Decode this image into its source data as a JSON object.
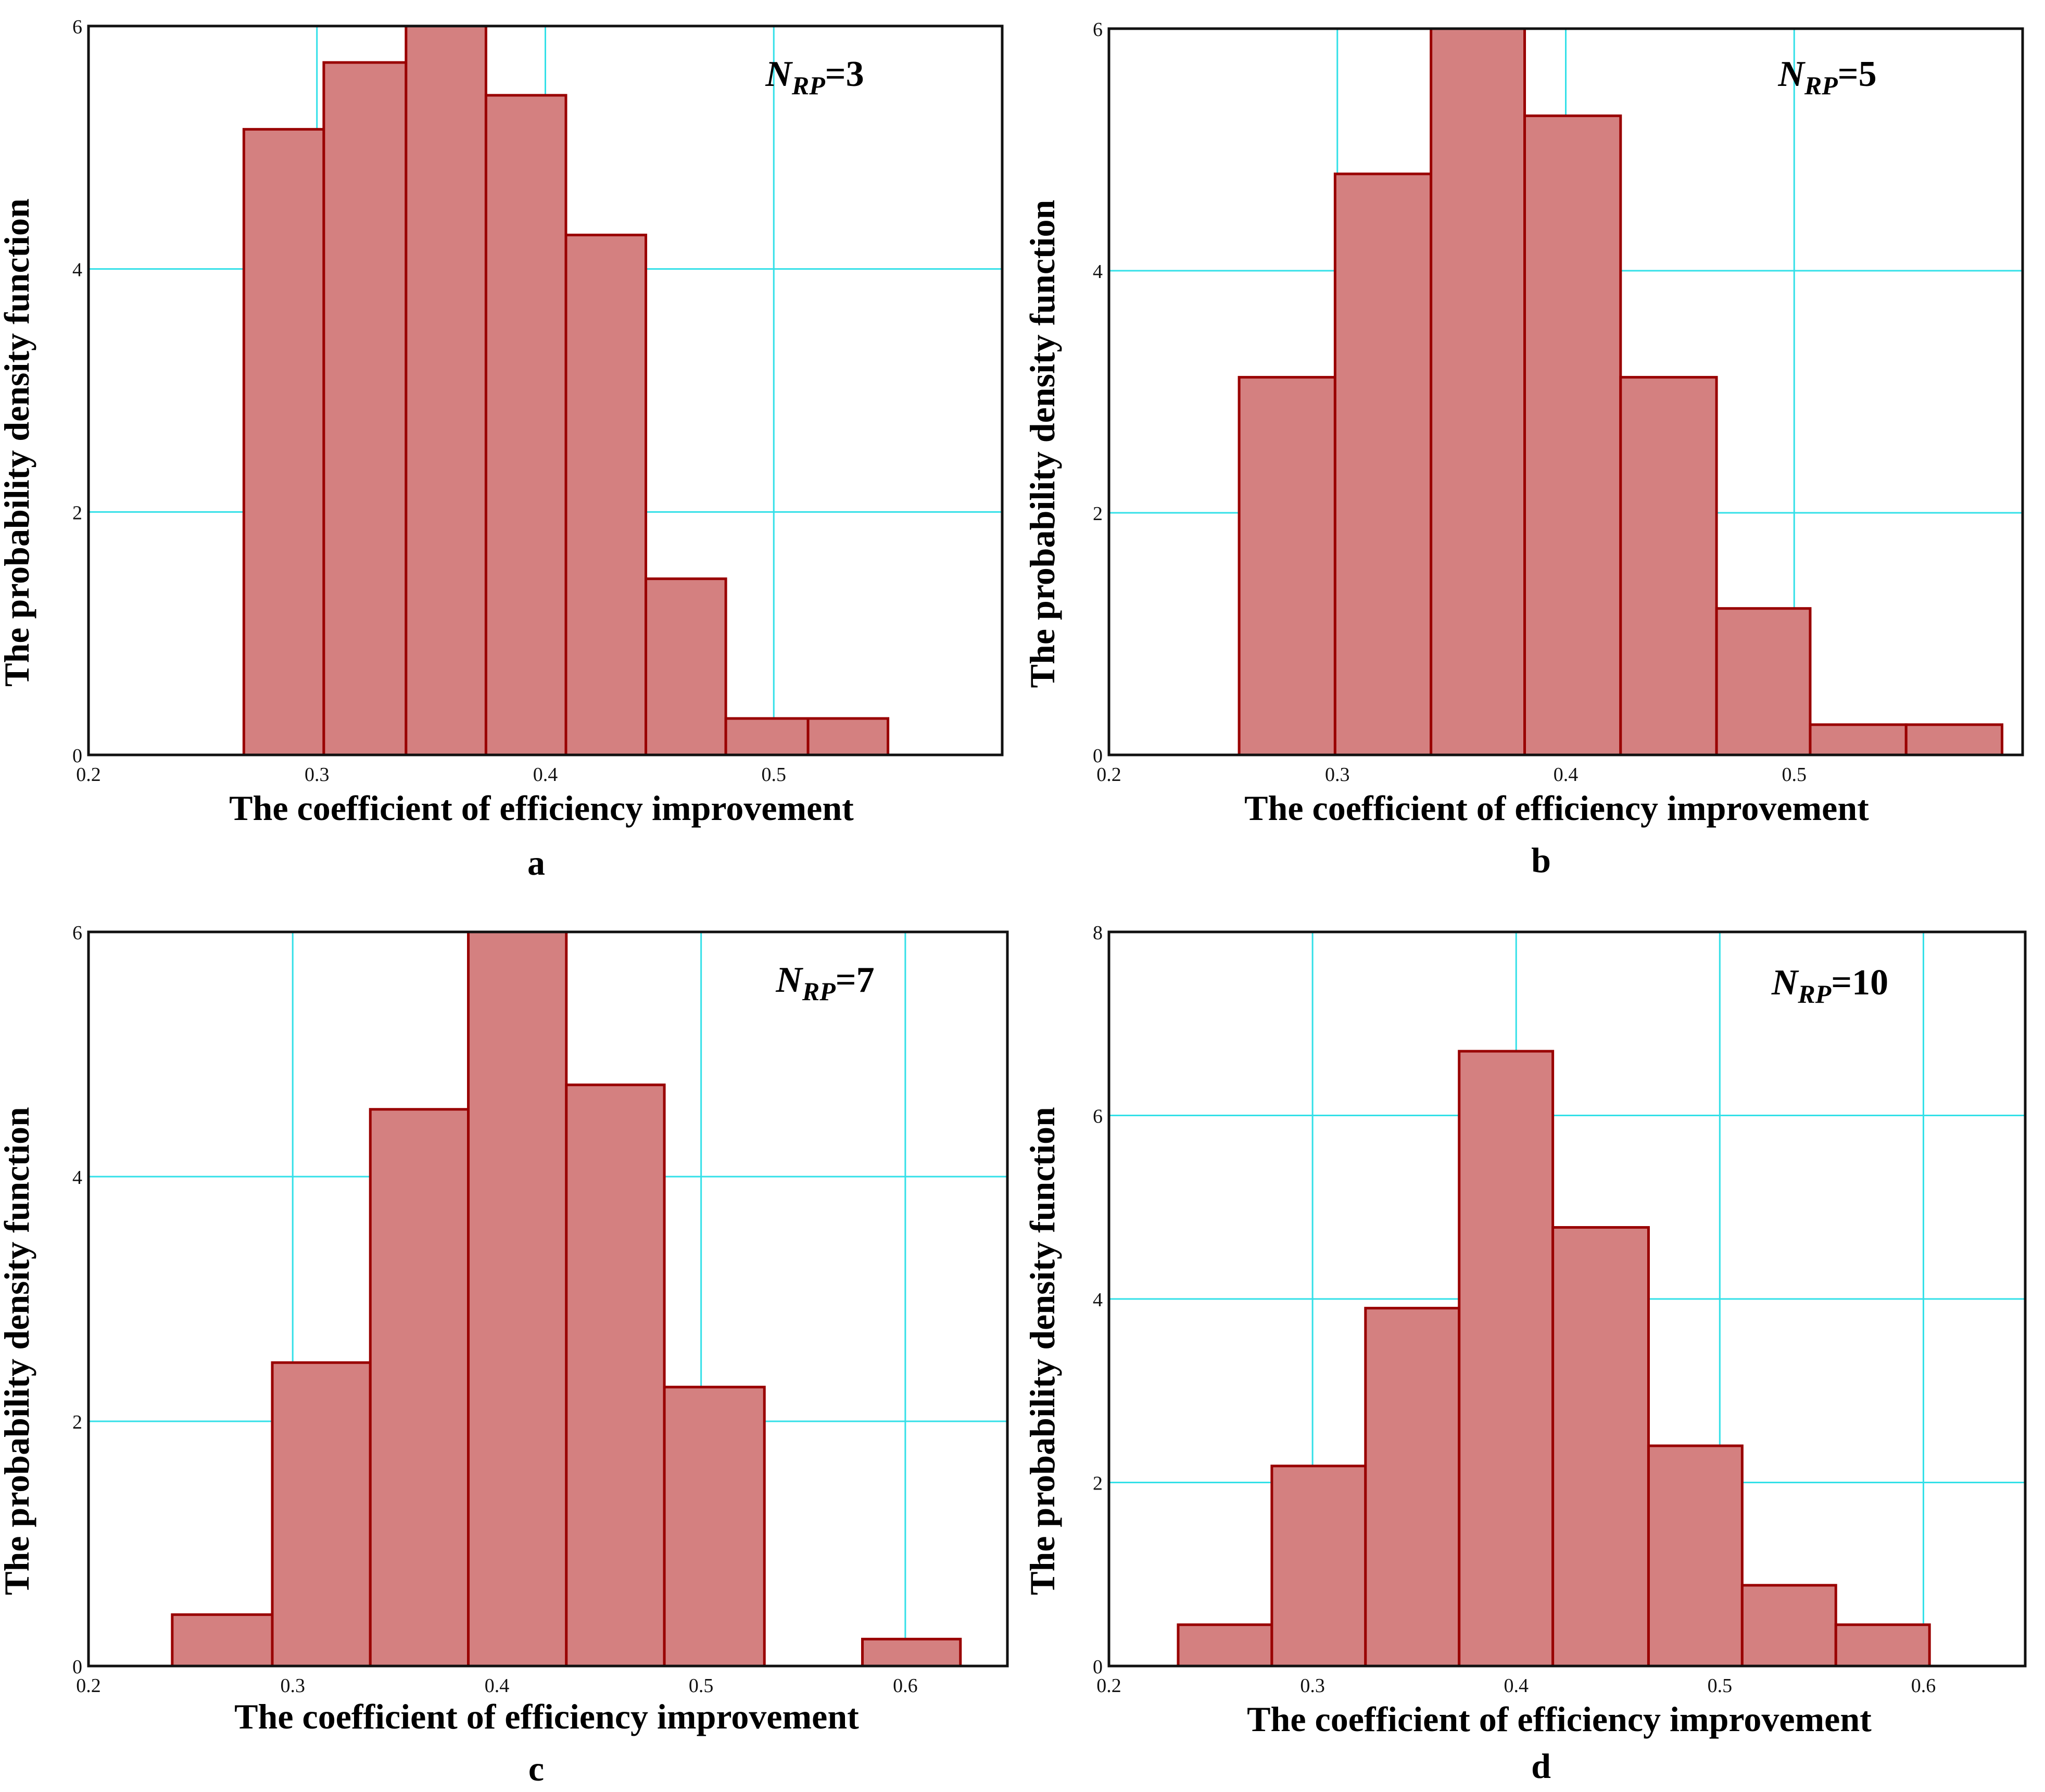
{
  "chart_data": [
    {
      "type": "bar",
      "panel": "a",
      "annotation": {
        "symbol": "N",
        "subscript": "RP",
        "value": "=3"
      },
      "xlabel": "The coefficient of efficiency improvement",
      "ylabel": "The probability density function",
      "xlim": [
        0.2,
        0.6
      ],
      "ylim": [
        0,
        6
      ],
      "xticks": [
        "0.2",
        "0.3",
        "0.4",
        "0.5"
      ],
      "yticks": [
        "0",
        "2",
        "4",
        "6"
      ],
      "bin_edges": [
        0.268,
        0.303,
        0.339,
        0.374,
        0.409,
        0.444,
        0.479,
        0.515,
        0.55
      ],
      "values": [
        5.15,
        5.7,
        6.0,
        5.43,
        4.28,
        1.45,
        0.3,
        0.3
      ]
    },
    {
      "type": "bar",
      "panel": "b",
      "annotation": {
        "symbol": "N",
        "subscript": "RP",
        "value": "=5"
      },
      "xlabel": "The coefficient of efficiency improvement",
      "ylabel": "The probability density function",
      "xlim": [
        0.2,
        0.6
      ],
      "ylim": [
        0,
        6
      ],
      "xticks": [
        "0.2",
        "0.3",
        "0.4",
        "0.5"
      ],
      "yticks": [
        "0",
        "2",
        "4",
        "6"
      ],
      "bin_edges": [
        0.257,
        0.299,
        0.341,
        0.382,
        0.424,
        0.466,
        0.507,
        0.549,
        0.591
      ],
      "values": [
        3.12,
        4.8,
        6.0,
        5.28,
        3.12,
        1.21,
        0.25,
        0.25
      ]
    },
    {
      "type": "bar",
      "panel": "c",
      "annotation": {
        "symbol": "N",
        "subscript": "RP",
        "value": "=7"
      },
      "xlabel": "The coefficient of efficiency improvement",
      "ylabel": "The probability density function",
      "xlim": [
        0.2,
        0.65
      ],
      "ylim": [
        0,
        6
      ],
      "xticks": [
        "0.2",
        "0.3",
        "0.4",
        "0.5",
        "0.6"
      ],
      "yticks": [
        "0",
        "2",
        "4",
        "6"
      ],
      "bin_edges": [
        0.241,
        0.29,
        0.338,
        0.386,
        0.434,
        0.482,
        0.531,
        0.579,
        0.627
      ],
      "values": [
        0.42,
        2.48,
        4.55,
        6.0,
        4.75,
        2.28,
        0.0,
        0.22
      ]
    },
    {
      "type": "bar",
      "panel": "d",
      "annotation": {
        "symbol": "N",
        "subscript": "RP",
        "value": "=10"
      },
      "xlabel": "The coefficient of efficiency improvement",
      "ylabel": "The probability density function",
      "xlim": [
        0.2,
        0.65
      ],
      "ylim": [
        0,
        8
      ],
      "xticks": [
        "0.2",
        "0.3",
        "0.4",
        "0.5",
        "0.6"
      ],
      "yticks": [
        "0",
        "2",
        "4",
        "6",
        "8"
      ],
      "bin_edges": [
        0.234,
        0.28,
        0.326,
        0.372,
        0.418,
        0.465,
        0.511,
        0.557,
        0.603
      ],
      "values": [
        0.45,
        2.18,
        3.9,
        6.7,
        4.78,
        2.4,
        0.88,
        0.45
      ]
    }
  ]
}
